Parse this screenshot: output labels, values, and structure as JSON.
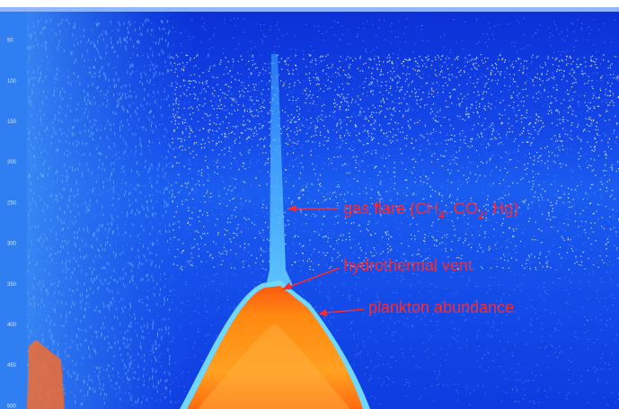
{
  "depth_labels": [
    "50",
    "100",
    "150",
    "200",
    "250",
    "300",
    "350",
    "400",
    "450",
    "500"
  ],
  "annotations": {
    "gas_flare": [
      "gas flare (CH",
      "4",
      ", CO",
      "2",
      ", Hg)"
    ],
    "hydrothermal_vent": "hydrothermal vent",
    "plankton": "plankton abundance"
  }
}
